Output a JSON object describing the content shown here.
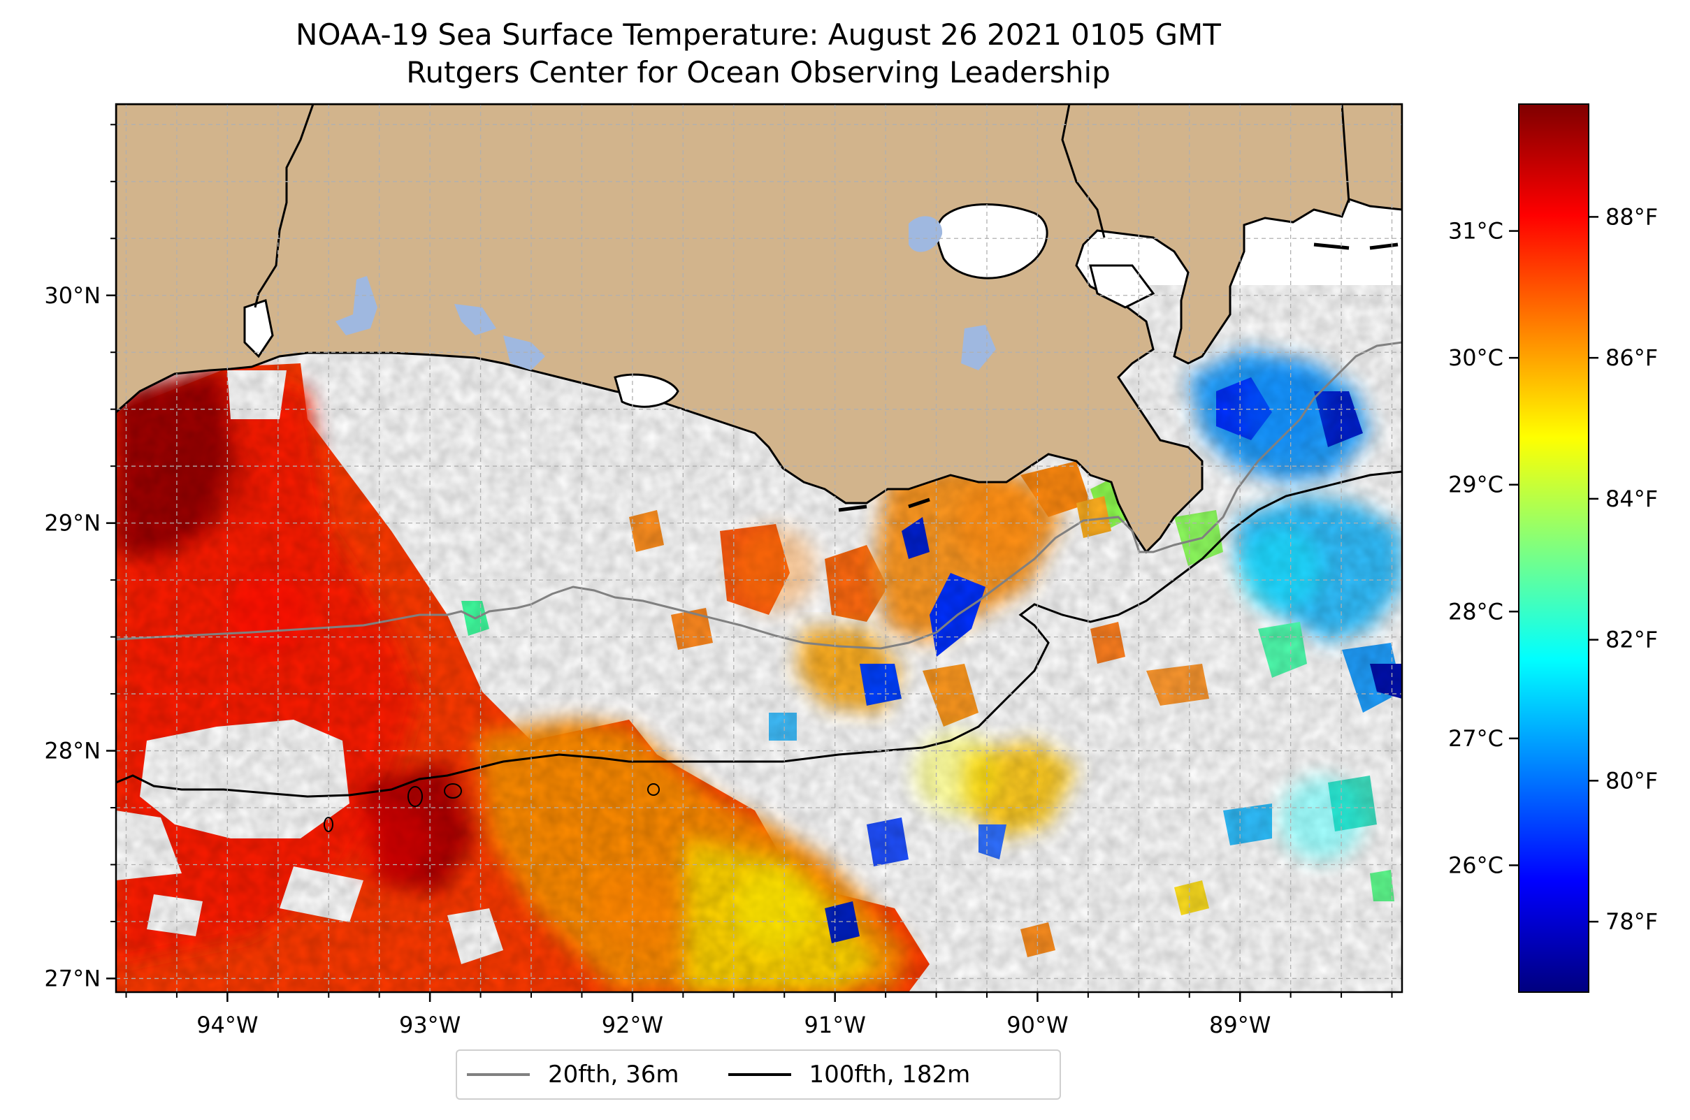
{
  "title": {
    "line1": "NOAA-19 Sea Surface Temperature: August 26 2021 0105 GMT",
    "line2": "Rutgers Center for Ocean Observing Leadership"
  },
  "colors": {
    "land": "#d2b48c",
    "lakes": "#9fb8e0",
    "coastline": "#000000",
    "grid": "#b0b0b0",
    "isobath_20fth": "#808080",
    "isobath_100fth": "#000000",
    "colormap": [
      "#00007f",
      "#0000ff",
      "#007fff",
      "#00ffff",
      "#7fff7f",
      "#ffff00",
      "#ff7f00",
      "#ff0000",
      "#7f0000"
    ]
  },
  "chart_data": {
    "type": "heatmap",
    "xlim": [
      -94.55,
      -88.2
    ],
    "ylim": [
      26.94,
      30.84
    ],
    "x_ticks": [
      {
        "value": -94,
        "label": "94°W"
      },
      {
        "value": -93,
        "label": "93°W"
      },
      {
        "value": -92,
        "label": "92°W"
      },
      {
        "value": -91,
        "label": "91°W"
      },
      {
        "value": -90,
        "label": "90°W"
      },
      {
        "value": -89,
        "label": "89°W"
      }
    ],
    "y_ticks": [
      {
        "value": 27,
        "label": "27°N"
      },
      {
        "value": 28,
        "label": "28°N"
      },
      {
        "value": 29,
        "label": "29°N"
      },
      {
        "value": 30,
        "label": "30°N"
      }
    ],
    "grid": true,
    "colorbar": {
      "orientation": "vertical",
      "celsius_range": [
        25.0,
        32.0
      ],
      "celsius_ticks": [
        {
          "value": 26,
          "label": "26°C"
        },
        {
          "value": 27,
          "label": "27°C"
        },
        {
          "value": 28,
          "label": "28°C"
        },
        {
          "value": 29,
          "label": "29°C"
        },
        {
          "value": 30,
          "label": "30°C"
        },
        {
          "value": 31,
          "label": "31°C"
        }
      ],
      "fahrenheit_ticks": [
        {
          "value": 78,
          "label": "78°F"
        },
        {
          "value": 80,
          "label": "80°F"
        },
        {
          "value": 82,
          "label": "82°F"
        },
        {
          "value": 84,
          "label": "84°F"
        },
        {
          "value": 86,
          "label": "86°F"
        },
        {
          "value": 88,
          "label": "88°F"
        }
      ]
    },
    "sst_regions_c": [
      {
        "lon": -94.1,
        "lat": 29.2,
        "value": 31.6
      },
      {
        "lon": -93.8,
        "lat": 28.6,
        "value": 30.9
      },
      {
        "lon": -93.2,
        "lat": 27.6,
        "value": 31.0
      },
      {
        "lon": -92.0,
        "lat": 27.3,
        "value": 30.2
      },
      {
        "lon": -91.3,
        "lat": 27.3,
        "value": 29.8
      },
      {
        "lon": -91.3,
        "lat": 28.8,
        "value": 30.6
      },
      {
        "lon": -90.2,
        "lat": 29.0,
        "value": 30.0
      },
      {
        "lon": -90.4,
        "lat": 27.9,
        "value": 29.4
      },
      {
        "lon": -88.8,
        "lat": 29.5,
        "value": 26.8
      },
      {
        "lon": -88.8,
        "lat": 28.8,
        "value": 27.6
      },
      {
        "lon": -88.6,
        "lat": 27.7,
        "value": 27.4
      }
    ],
    "legend": {
      "placement": "bottom-center",
      "entries": [
        {
          "label": "20fth, 36m",
          "color": "#808080"
        },
        {
          "label": "100fth, 182m",
          "color": "#000000"
        }
      ]
    }
  }
}
